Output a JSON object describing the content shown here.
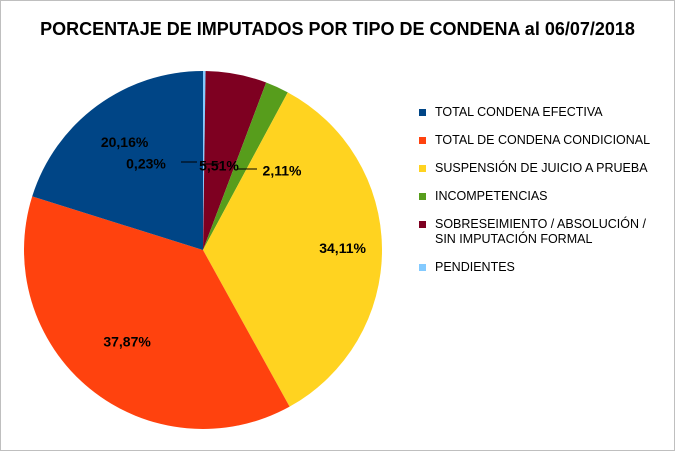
{
  "chart_data": {
    "type": "pie",
    "title": "PORCENTAJE DE IMPUTADOS POR TIPO DE CONDENA al 06/07/2018",
    "slices": [
      {
        "label": "PENDIENTES",
        "value": 0.23,
        "display": "0,23%",
        "color": "#83caff"
      },
      {
        "label": "SOBRESEIMIENTO / ABSOLUCIÓN / SIN IMPUTACIÓN FORMAL",
        "value": 5.51,
        "display": "5,51%",
        "color": "#7e0021"
      },
      {
        "label": "INCOMPETENCIAS",
        "value": 2.11,
        "display": "2,11%",
        "color": "#579d1c"
      },
      {
        "label": "SUSPENSIÓN DE JUICIO A PRUEBA",
        "value": 34.11,
        "display": "34,11%",
        "color": "#ffd320"
      },
      {
        "label": "TOTAL DE CONDENA CONDICIONAL",
        "value": 37.87,
        "display": "37,87%",
        "color": "#ff420e"
      },
      {
        "label": "TOTAL CONDENA EFECTIVA",
        "value": 20.16,
        "display": "20,16%",
        "color": "#004586"
      }
    ],
    "legend": [
      {
        "label": "TOTAL CONDENA EFECTIVA",
        "color": "#004586"
      },
      {
        "label": "TOTAL DE CONDENA CONDICIONAL",
        "color": "#ff420e"
      },
      {
        "label": "SUSPENSIÓN DE JUICIO A PRUEBA",
        "color": "#ffd320"
      },
      {
        "label": "INCOMPETENCIAS",
        "color": "#579d1c"
      },
      {
        "label": "SOBRESEIMIENTO / ABSOLUCIÓN / SIN IMPUTACIÓN FORMAL",
        "color": "#7e0021"
      },
      {
        "label": "PENDIENTES",
        "color": "#83caff"
      }
    ],
    "legend_position": "right",
    "start_angle": "top",
    "direction": "clockwise"
  }
}
